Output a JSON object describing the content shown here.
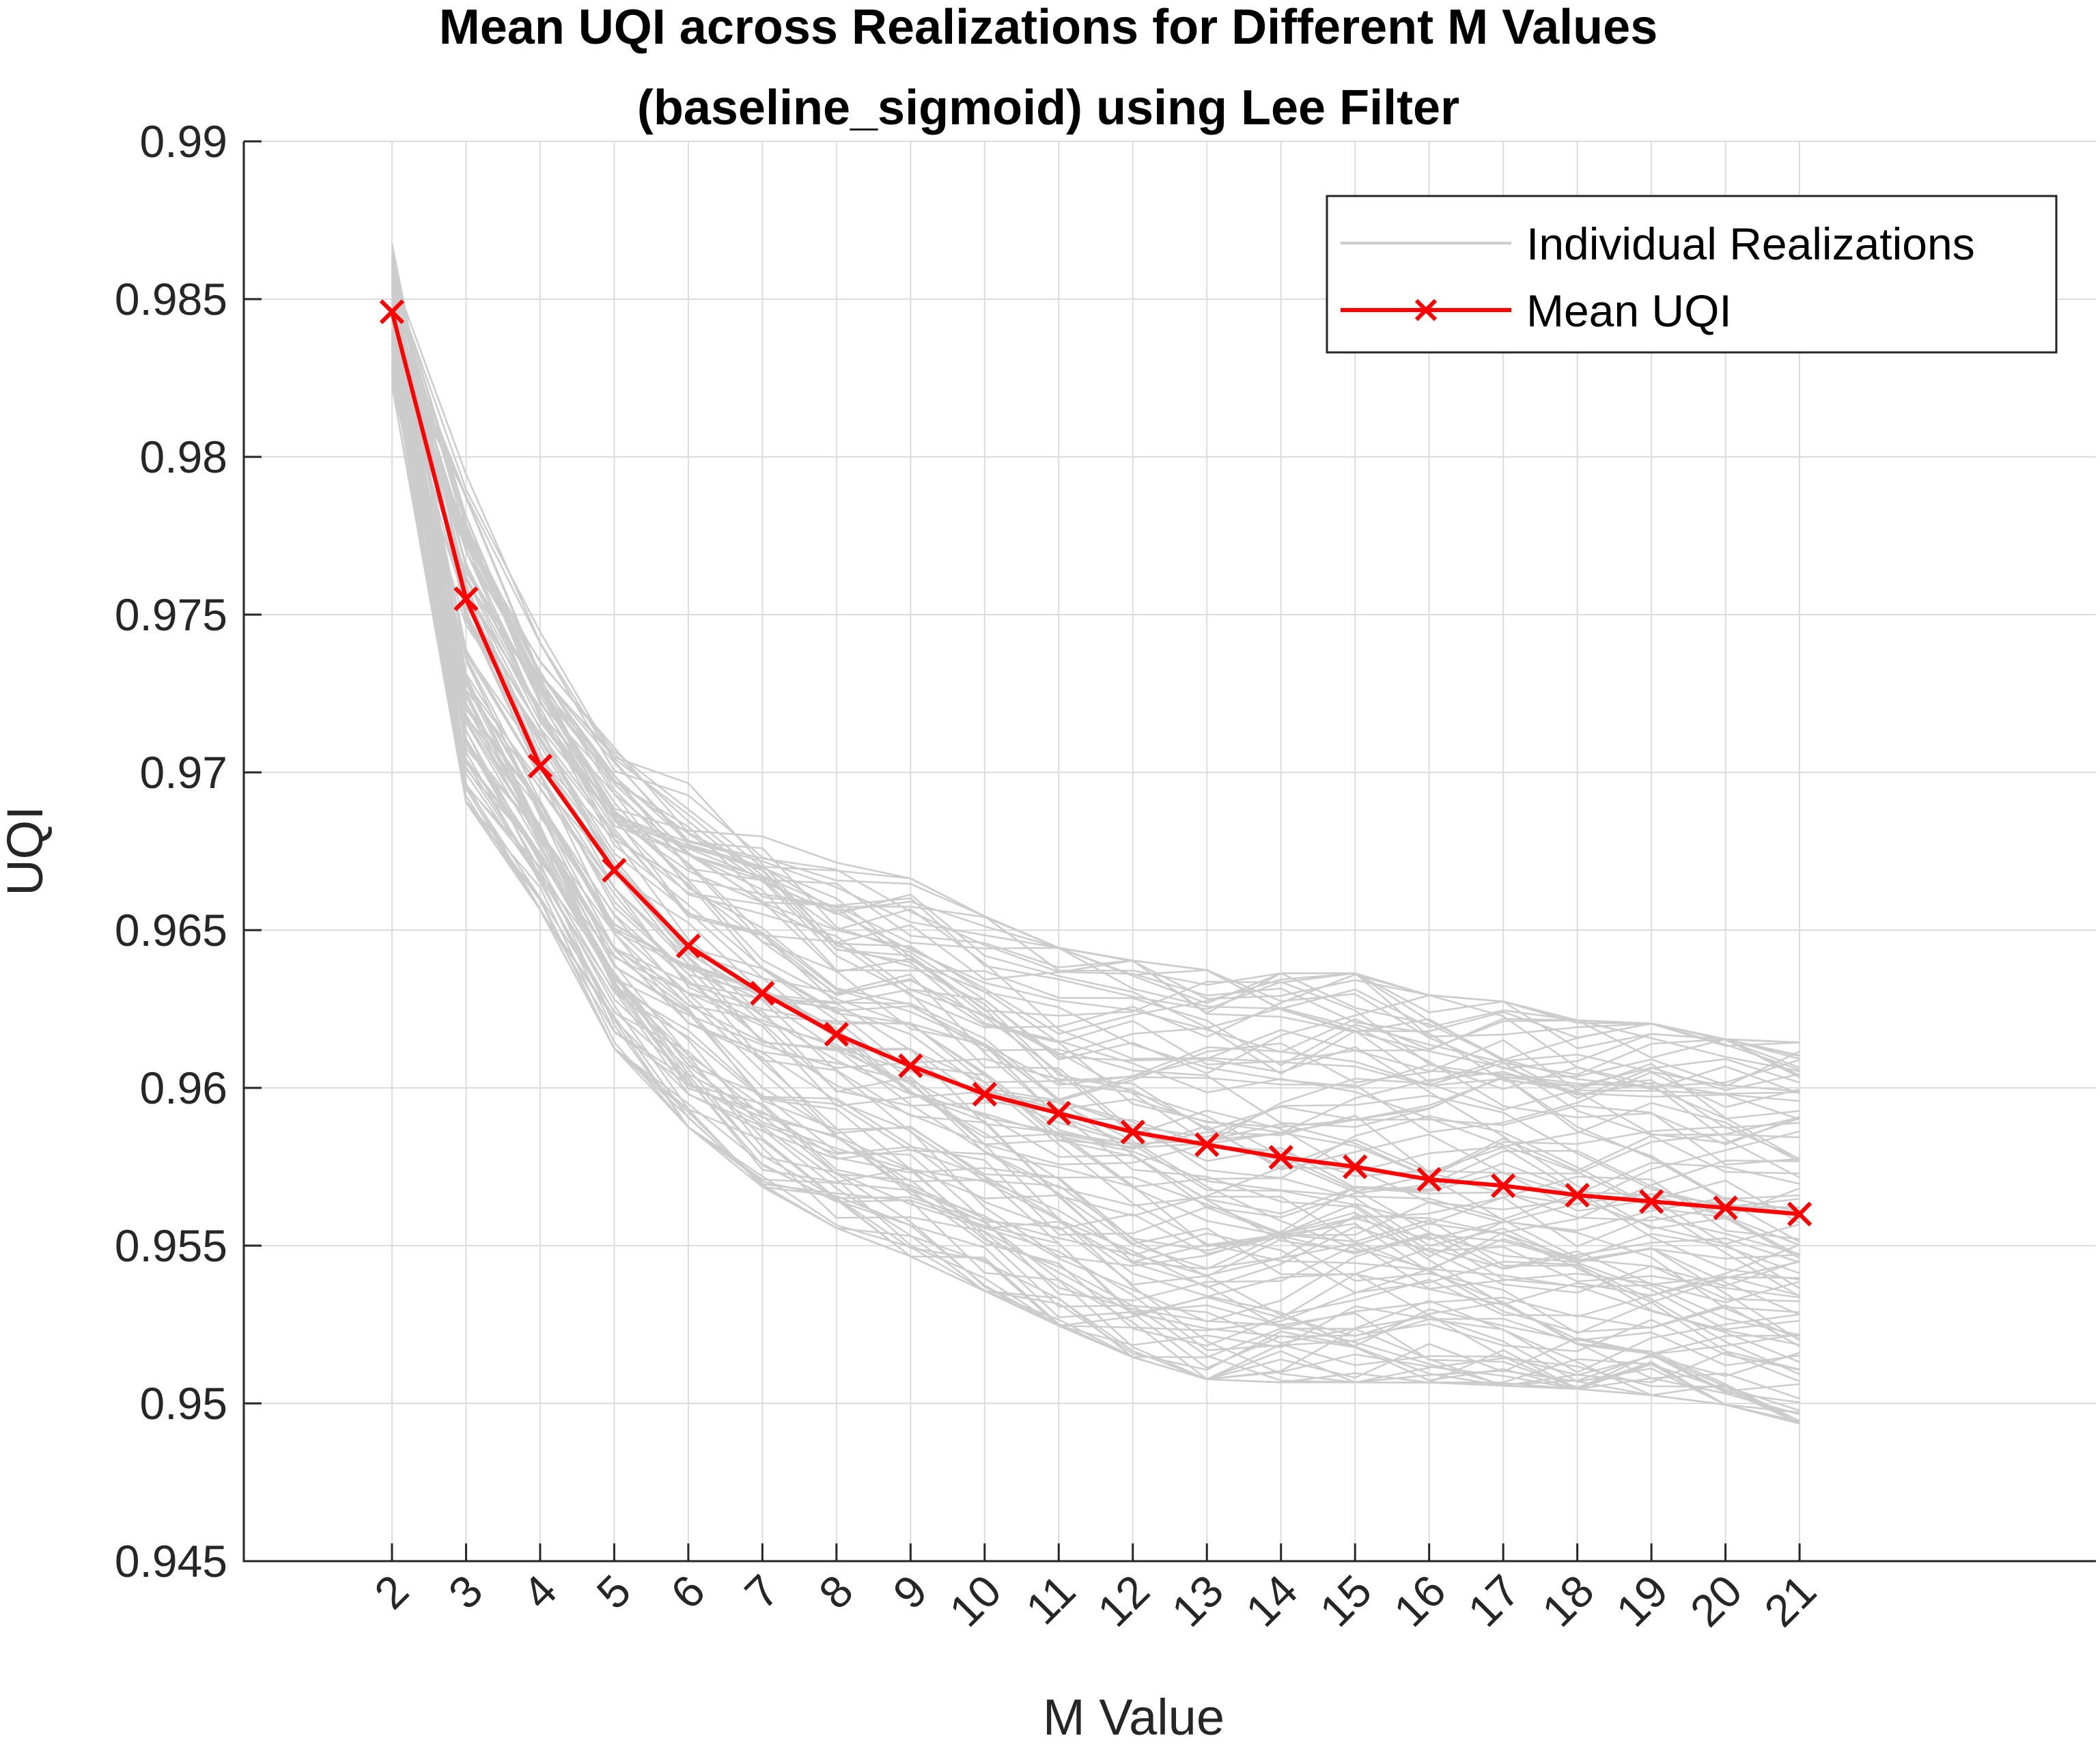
{
  "chart_data": {
    "type": "line",
    "title_lines": [
      "Mean UQI across Realizations for Different M Values",
      "(baseline_sigmoid) using Lee Filter"
    ],
    "xlabel": "M Value",
    "ylabel": "UQI",
    "x": [
      2,
      3,
      4,
      5,
      6,
      7,
      8,
      9,
      10,
      11,
      12,
      13,
      14,
      15,
      16,
      17,
      18,
      19,
      20,
      21
    ],
    "xlim": [
      0,
      25
    ],
    "ylim": [
      0.945,
      0.99
    ],
    "yticks": [
      "0.945",
      "0.95",
      "0.955",
      "0.96",
      "0.965",
      "0.97",
      "0.975",
      "0.98",
      "0.985",
      "0.99"
    ],
    "grid": true,
    "legend_position": "top-right",
    "legend": [
      "Individual Realizations",
      "Mean UQI"
    ],
    "series": [
      {
        "name": "Mean UQI",
        "color": "#ff0000",
        "marker": "x",
        "values": [
          0.9846,
          0.9755,
          0.9702,
          0.9669,
          0.9645,
          0.963,
          0.9617,
          0.9607,
          0.9598,
          0.9592,
          0.9586,
          0.9582,
          0.9578,
          0.9575,
          0.9571,
          0.9569,
          0.9566,
          0.9564,
          0.9562,
          0.956
        ]
      }
    ],
    "realizations_band": {
      "color": "#cccccc",
      "count": 100,
      "upper": [
        0.9868,
        0.9795,
        0.9745,
        0.9715,
        0.9698,
        0.9685,
        0.9672,
        0.9667,
        0.9655,
        0.9645,
        0.9641,
        0.9638,
        0.9637,
        0.9637,
        0.963,
        0.9628,
        0.9622,
        0.9621,
        0.9616,
        0.9615
      ],
      "lower": [
        0.9822,
        0.969,
        0.9656,
        0.9612,
        0.9587,
        0.9568,
        0.9555,
        0.9546,
        0.9535,
        0.9524,
        0.9514,
        0.9507,
        0.9506,
        0.9506,
        0.9506,
        0.9505,
        0.9504,
        0.9502,
        0.9499,
        0.9493
      ]
    }
  }
}
